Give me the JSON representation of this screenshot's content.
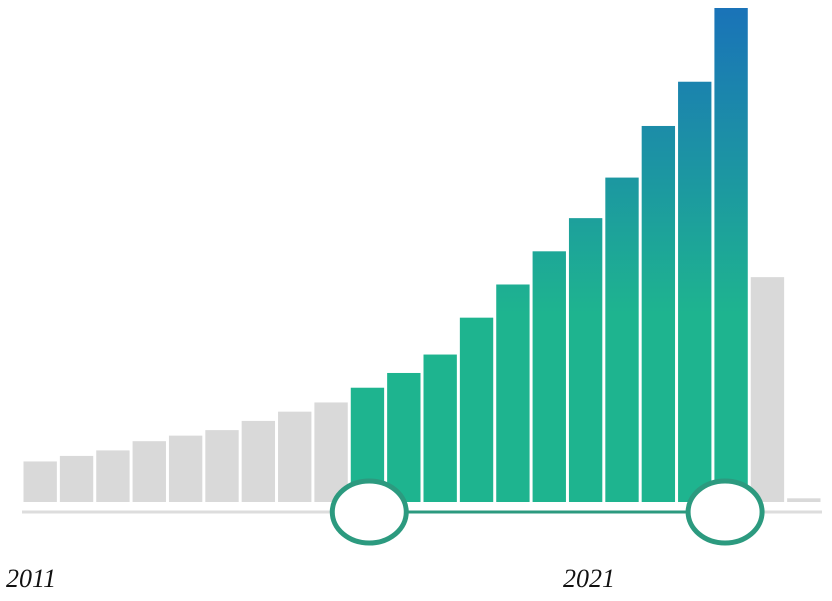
{
  "histogram": {
    "start_year_label": "2011",
    "end_year_label": "2021",
    "colors": {
      "inactive_bar": "#d9d9d9",
      "active_bar_bottom": "#1eb48f",
      "active_bar_top": "#1a73b8",
      "track": "#dddddd",
      "selected_track": "#2c9a7f",
      "handle_stroke": "#2c9a7f",
      "handle_fill": "#ffffff"
    },
    "selection": {
      "start_bar_index": 9,
      "end_bar_index": 19
    }
  },
  "chart_data": {
    "type": "bar",
    "values": [
      0.11,
      0.125,
      0.14,
      0.165,
      0.18,
      0.195,
      0.22,
      0.245,
      0.27,
      0.31,
      0.35,
      0.4,
      0.5,
      0.59,
      0.68,
      0.77,
      0.88,
      1.02,
      1.14,
      1.34,
      0.61,
      0.01
    ],
    "ylim": [
      0,
      1.34
    ],
    "grid": false,
    "legend": "none"
  }
}
